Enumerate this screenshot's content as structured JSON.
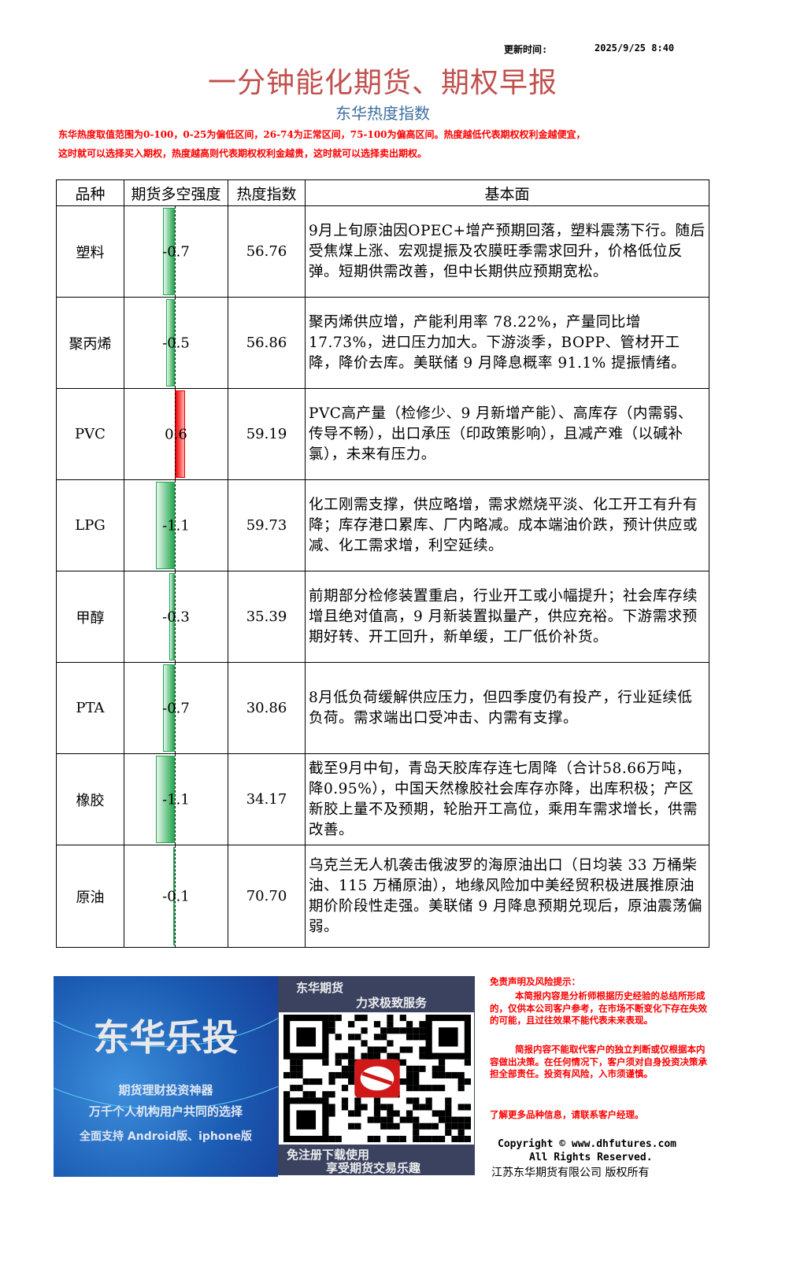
{
  "header": {
    "update_label": "更新时间:",
    "update_time": "2025/9/25  8:40",
    "title": "一分钟能化期货、期权早报",
    "subtitle": "东华热度指数",
    "note_line1": "东华热度取值范围为0-100，0-25为偏低区间，26-74为正常区间，75-100为偏高区间。热度越低代表期权权利金越便宜，",
    "note_line2": "这时就可以选择买入期权，热度越高则代表期权权利金越贵，这时就可以选择卖出期权。"
  },
  "table": {
    "headers": [
      "品种",
      "期货多空强度",
      "热度指数",
      "基本面"
    ],
    "rows": [
      {
        "name": "塑料",
        "strength": "-0.7",
        "strength_value": -0.7,
        "heat": "56.76",
        "desc": "9月上旬原油因OPEC+增产预期回落，塑料震荡下行。随后受焦煤上涨、宏观提振及农膜旺季需求回升，价格低位反弹。短期供需改善，但中长期供应预期宽松。"
      },
      {
        "name": "聚丙烯",
        "strength": "-0.5",
        "strength_value": -0.5,
        "heat": "56.86",
        "desc": "聚丙烯供应增，产能利用率 78.22%，产量同比增 17.73%，进口压力加大。下游淡季，BOPP、管材开工降，降价去库。美联储 9 月降息概率 91.1% 提振情绪。"
      },
      {
        "name": "PVC",
        "strength": "0.6",
        "strength_value": 0.6,
        "heat": "59.19",
        "desc": "PVC高产量（检修少、9 月新增产能）、高库存（内需弱、传导不畅），出口承压（印政策影响），且减产难（以碱补氯），未来有压力。"
      },
      {
        "name": "LPG",
        "strength": "-1.1",
        "strength_value": -1.1,
        "heat": "59.73",
        "desc": "化工刚需支撑，供应略增，需求燃烧平淡、化工开工有升有降；库存港口累库、厂内略减。成本端油价跌，预计供应或减、化工需求增，利空延续。"
      },
      {
        "name": "甲醇",
        "strength": "-0.3",
        "strength_value": -0.3,
        "heat": "35.39",
        "desc": "前期部分检修装置重启，行业开工或小幅提升；社会库存续增且绝对值高，9 月新装置拟量产，供应充裕。下游需求预期好转、开工回升，新单缓，工厂低价补货。"
      },
      {
        "name": "PTA",
        "strength": "-0.7",
        "strength_value": -0.7,
        "heat": "30.86",
        "desc": "8月低负荷缓解供应压力，但四季度仍有投产，行业延续低负荷。需求端出口受冲击、内需有支撑。"
      },
      {
        "name": "橡胶",
        "strength": "-1.1",
        "strength_value": -1.1,
        "heat": "34.17",
        "desc": "截至9月中旬，青岛天胶库存连七周降（合计58.66万吨，降0.95%），中国天然橡胶社会库存亦降，出库积极；产区新胶上量不及预期，轮胎开工高位，乘用车需求增长，供需改善。"
      },
      {
        "name": "原油",
        "strength": "-0.1",
        "strength_value": -0.1,
        "heat": "70.70",
        "desc": "乌克兰无人机袭击俄波罗的海原油出口（日均装 33 万桶柴油、115 万桶原油），地缘风险加中美经贸积极进展推原油期价阶段性走强。美联储 9 月降息预期兑现后，原油震荡偏弱。"
      }
    ]
  },
  "colors": {
    "negative": "#22a84f",
    "positive": "#ee0000",
    "title": "#c0504d",
    "subtitle": "#3f6ea0",
    "note": "#ff0000"
  },
  "footer": {
    "banner": {
      "title": "东华乐投",
      "line1": "期货理财投资神器",
      "line2": "万千个人机构用户共同的选择",
      "line3": "全面支持 Android版、iphone版"
    },
    "qr": {
      "top1": "东华期货",
      "top2": "力求极致服务",
      "bottom1": "免注册下载使用",
      "bottom2": "享受期货交易乐趣"
    },
    "disclaimer": {
      "title": "免责声明及风险提示：",
      "p1": "本简报内容是分析师根据历史经验的总结所形成的，仅供本公司客户参考，在市场不断变化下存在失效的可能，且过往效果不能代表未来表现。",
      "p2": "简报内容不能取代客户的独立判断或仅根据本内容做出决策。在任何情况下，客户须对自身投资决策承担全部责任。投资有风险，入市须谨慎。",
      "contact": "了解更多品种信息，请联系客户经理。"
    },
    "copyright1": "Copyright © www.dhfutures.com",
    "copyright2": "All Rights Reserved.",
    "copyright3": "江苏东华期货有限公司   版权所有"
  }
}
